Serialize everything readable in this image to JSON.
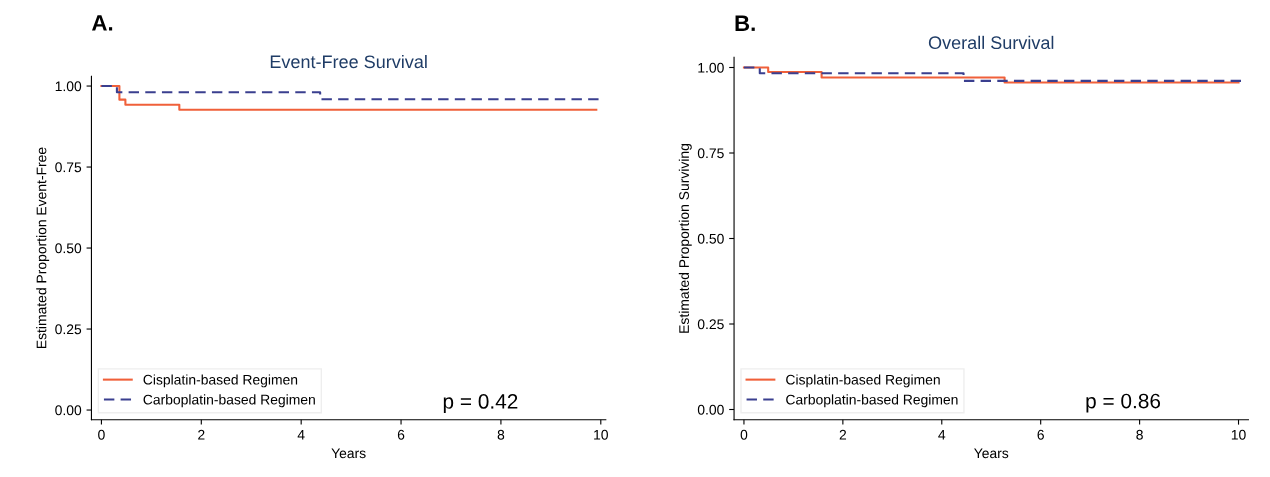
{
  "chart_data": [
    {
      "type": "step",
      "title": "Event-Free Survival",
      "xlabel": "Years",
      "ylabel": "Estimated Proportion Event-Free",
      "annotations": [
        "A.",
        "p = 0.42"
      ],
      "xlim": [
        -0.2,
        10.1
      ],
      "ylim": [
        -0.03,
        1.03
      ],
      "xticks": [
        0,
        2,
        4,
        6,
        8,
        10
      ],
      "yticks": [
        {
          "value": 0,
          "label": "0.00"
        },
        {
          "value": 0.25,
          "label": "0.25"
        },
        {
          "value": 0.5,
          "label": "0.50"
        },
        {
          "value": 0.75,
          "label": "0.75"
        },
        {
          "value": 1,
          "label": "1.00"
        }
      ],
      "grid": false,
      "legend": "bottom left",
      "series": [
        {
          "name": "Cisplatin-based Regimen",
          "color": "#f0603a",
          "line_style": "solid",
          "x": [
            0,
            0.36,
            0.48,
            1.56,
            9.91
          ],
          "values": [
            1.0,
            0.958,
            0.942,
            0.927,
            0.927
          ]
        },
        {
          "name": "Carboplatin-based Regimen",
          "color": "#3a3f8f",
          "line_style": "dashed",
          "x": [
            0,
            0.31,
            4.38,
            9.98
          ],
          "values": [
            1.0,
            0.981,
            0.959,
            0.959
          ]
        }
      ]
    },
    {
      "type": "step",
      "title": "Overall Survival",
      "xlabel": "Years",
      "ylabel": "Estimated Proportion Surviving",
      "annotations": [
        "B.",
        "p = 0.86"
      ],
      "xlim": [
        -0.2,
        10.2
      ],
      "ylim": [
        -0.03,
        1.03
      ],
      "xticks": [
        0,
        2,
        4,
        6,
        8,
        10
      ],
      "yticks": [
        {
          "value": 0,
          "label": "0.00"
        },
        {
          "value": 0.25,
          "label": "0.25"
        },
        {
          "value": 0.5,
          "label": "0.50"
        },
        {
          "value": 0.75,
          "label": "0.75"
        },
        {
          "value": 1,
          "label": "1.00"
        }
      ],
      "grid": false,
      "legend": "bottom left",
      "series": [
        {
          "name": "Cisplatin-based Regimen",
          "color": "#f0603a",
          "line_style": "solid",
          "x": [
            0,
            0.49,
            1.57,
            5.27,
            10.0
          ],
          "values": [
            1.0,
            0.987,
            0.971,
            0.956,
            0.956
          ]
        },
        {
          "name": "Carboplatin-based Regimen",
          "color": "#3a3f8f",
          "line_style": "dashed",
          "x": [
            0,
            0.32,
            4.44,
            10.05
          ],
          "values": [
            1.0,
            0.983,
            0.961,
            0.961
          ]
        }
      ]
    }
  ]
}
